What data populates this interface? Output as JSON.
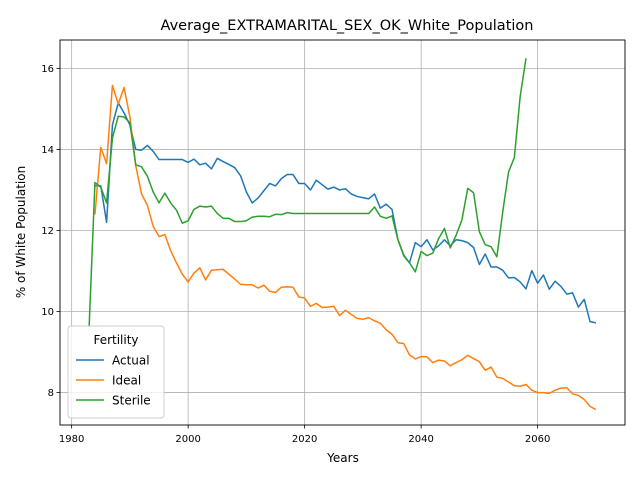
{
  "chart_data": {
    "type": "line",
    "title": "Average_EXTRAMARITAL_SEX_OK_White_Population",
    "xlabel": "Years",
    "ylabel": "% of White Population",
    "xlim": [
      1978,
      2075
    ],
    "ylim": [
      7.2,
      16.7
    ],
    "xticks": [
      1980,
      2000,
      2020,
      2040,
      2060
    ],
    "yticks": [
      8,
      10,
      12,
      14,
      16
    ],
    "grid": true,
    "legend": {
      "title": "Fertility",
      "position": "lower-left"
    },
    "series": [
      {
        "name": "Actual",
        "color": "#1f77b4",
        "x": [
          1984,
          1985,
          1986,
          1987,
          1988,
          1989,
          1990,
          1991,
          1992,
          1993,
          1994,
          1995,
          1996,
          1997,
          1998,
          1999,
          2000,
          2001,
          2002,
          2003,
          2004,
          2005,
          2006,
          2007,
          2008,
          2009,
          2010,
          2011,
          2012,
          2013,
          2014,
          2015,
          2016,
          2017,
          2018,
          2019,
          2020,
          2021,
          2022,
          2023,
          2024,
          2025,
          2026,
          2027,
          2028,
          2029,
          2030,
          2031,
          2032,
          2033,
          2034,
          2035,
          2036,
          2037,
          2038,
          2039,
          2040,
          2041,
          2042,
          2043,
          2044,
          2045,
          2046,
          2047,
          2048,
          2049,
          2050,
          2051,
          2052,
          2053,
          2054,
          2055,
          2056,
          2057,
          2058,
          2059,
          2060,
          2061,
          2062,
          2063,
          2064,
          2065,
          2066,
          2067,
          2068,
          2069,
          2070
        ],
        "y": [
          13.1,
          13.1,
          12.2,
          14.6,
          15.15,
          14.9,
          14.6,
          14.0,
          13.98,
          14.1,
          13.95,
          13.75,
          13.75,
          13.75,
          13.75,
          13.75,
          13.68,
          13.76,
          13.62,
          13.66,
          13.52,
          13.78,
          13.7,
          13.63,
          13.55,
          13.35,
          12.95,
          12.68,
          12.8,
          12.98,
          13.16,
          13.1,
          13.28,
          13.38,
          13.38,
          13.16,
          13.16,
          13.0,
          13.24,
          13.13,
          13.02,
          13.07,
          13.0,
          13.03,
          12.9,
          12.84,
          12.81,
          12.78,
          12.9,
          12.55,
          12.65,
          12.52,
          11.78,
          11.38,
          11.2,
          11.7,
          11.6,
          11.77,
          11.52,
          11.62,
          11.77,
          11.62,
          11.77,
          11.75,
          11.7,
          11.58,
          11.16,
          11.42,
          11.1,
          11.1,
          11.02,
          10.83,
          10.84,
          10.73,
          10.56,
          11.01,
          10.7,
          10.9,
          10.55,
          10.75,
          10.62,
          10.43,
          10.46,
          10.11,
          10.3,
          9.75,
          9.72
        ]
      },
      {
        "name": "Ideal",
        "color": "#ff7f0e",
        "x": [
          1984,
          1985,
          1986,
          1987,
          1988,
          1989,
          1990,
          1991,
          1992,
          1993,
          1994,
          1995,
          1996,
          1997,
          1998,
          1999,
          2000,
          2001,
          2002,
          2003,
          2004,
          2005,
          2006,
          2007,
          2008,
          2009,
          2010,
          2011,
          2012,
          2013,
          2014,
          2015,
          2016,
          2017,
          2018,
          2019,
          2020,
          2021,
          2022,
          2023,
          2024,
          2025,
          2026,
          2027,
          2028,
          2029,
          2030,
          2031,
          2032,
          2033,
          2034,
          2035,
          2036,
          2037,
          2038,
          2039,
          2040,
          2041,
          2042,
          2043,
          2044,
          2045,
          2046,
          2047,
          2048,
          2049,
          2050,
          2051,
          2052,
          2053,
          2054,
          2055,
          2056,
          2057,
          2058,
          2059,
          2060,
          2061,
          2062,
          2063,
          2064,
          2065,
          2066,
          2067,
          2068,
          2069,
          2070
        ],
        "y": [
          12.4,
          14.05,
          13.65,
          15.58,
          15.12,
          15.53,
          14.8,
          13.6,
          12.9,
          12.62,
          12.1,
          11.85,
          11.9,
          11.5,
          11.2,
          10.92,
          10.73,
          10.95,
          11.08,
          10.78,
          11.02,
          11.03,
          11.04,
          10.92,
          10.8,
          10.67,
          10.66,
          10.66,
          10.58,
          10.65,
          10.5,
          10.47,
          10.6,
          10.61,
          10.6,
          10.36,
          10.33,
          10.13,
          10.2,
          10.1,
          10.11,
          10.13,
          9.9,
          10.03,
          9.93,
          9.83,
          9.81,
          9.85,
          9.77,
          9.71,
          9.55,
          9.44,
          9.23,
          9.21,
          8.93,
          8.83,
          8.89,
          8.88,
          8.74,
          8.8,
          8.78,
          8.66,
          8.74,
          8.81,
          8.92,
          8.84,
          8.76,
          8.55,
          8.63,
          8.38,
          8.35,
          8.26,
          8.17,
          8.16,
          8.2,
          8.06,
          8.0,
          8.0,
          7.98,
          8.06,
          8.11,
          8.12,
          7.97,
          7.93,
          7.83,
          7.66,
          7.58
        ]
      },
      {
        "name": "Sterile",
        "color": "#2ca02c",
        "x": [
          1983,
          1984,
          1985,
          1986,
          1987,
          1988,
          1989,
          1990,
          1991,
          1992,
          1993,
          1994,
          1995,
          1996,
          1997,
          1998,
          1999,
          2000,
          2001,
          2002,
          2003,
          2004,
          2005,
          2006,
          2007,
          2008,
          2009,
          2010,
          2011,
          2012,
          2013,
          2014,
          2015,
          2016,
          2017,
          2018,
          2019,
          2020,
          2021,
          2022,
          2023,
          2024,
          2025,
          2026,
          2027,
          2028,
          2029,
          2030,
          2031,
          2032,
          2033,
          2034,
          2035,
          2036,
          2037,
          2038,
          2039,
          2040,
          2041,
          2042,
          2043,
          2044,
          2045,
          2046,
          2047,
          2048,
          2049,
          2050,
          2051,
          2052,
          2053,
          2054,
          2055,
          2056,
          2057,
          2058
        ],
        "y": [
          9.62,
          13.18,
          13.07,
          12.68,
          14.28,
          14.82,
          14.8,
          14.66,
          13.62,
          13.57,
          13.34,
          12.95,
          12.68,
          12.92,
          12.68,
          12.5,
          12.18,
          12.24,
          12.52,
          12.6,
          12.58,
          12.6,
          12.42,
          12.3,
          12.3,
          12.22,
          12.22,
          12.24,
          12.33,
          12.35,
          12.35,
          12.34,
          12.4,
          12.39,
          12.44,
          12.42,
          12.42,
          12.42,
          12.42,
          12.42,
          12.42,
          12.42,
          12.42,
          12.42,
          12.42,
          12.42,
          12.42,
          12.42,
          12.42,
          12.58,
          12.35,
          12.3,
          12.36,
          11.78,
          11.4,
          11.2,
          10.98,
          11.48,
          11.38,
          11.44,
          11.8,
          12.05,
          11.57,
          11.88,
          12.26,
          13.04,
          12.93,
          11.97,
          11.65,
          11.6,
          11.35,
          12.45,
          13.44,
          13.8,
          15.3,
          16.25
        ]
      }
    ]
  }
}
